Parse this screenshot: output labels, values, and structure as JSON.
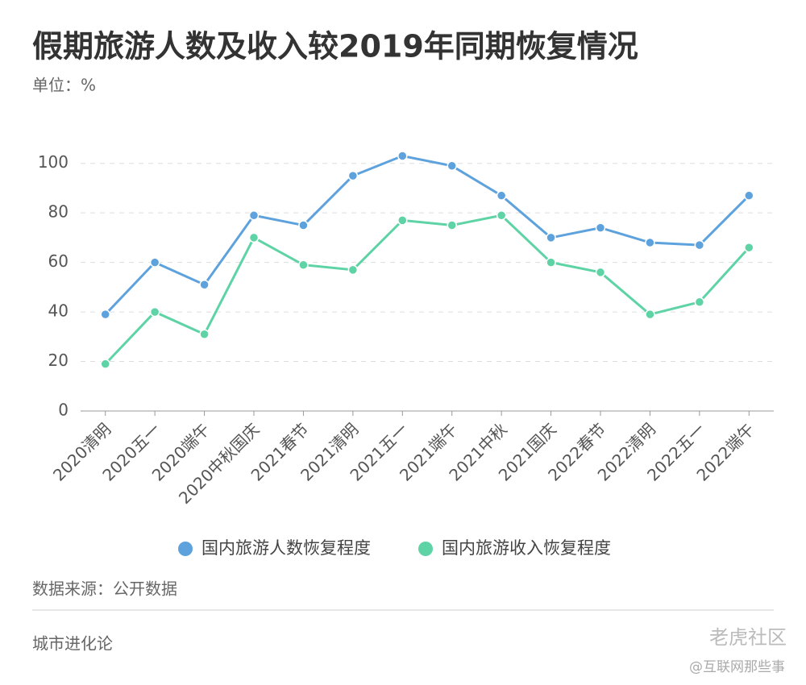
{
  "chart_data": {
    "type": "line",
    "title": "假期旅游人数及收入较2019年同期恢复情况",
    "subtitle": "单位：%",
    "categories": [
      "2020清明",
      "2020五一",
      "2020端午",
      "2020中秋国庆",
      "2021春节",
      "2021清明",
      "2021五一",
      "2021端午",
      "2021中秋",
      "2021国庆",
      "2022春节",
      "2022清明",
      "2022五一",
      "2022端午"
    ],
    "series": [
      {
        "name": "国内旅游人数恢复程度",
        "color": "#5da2dd",
        "values": [
          39,
          60,
          51,
          79,
          75,
          95,
          103,
          99,
          87,
          70,
          74,
          68,
          67,
          87
        ]
      },
      {
        "name": "国内旅游收入恢复程度",
        "color": "#5ed3a5",
        "values": [
          19,
          40,
          31,
          70,
          59,
          57,
          77,
          75,
          79,
          60,
          56,
          39,
          44,
          66
        ]
      }
    ],
    "ylim": [
      0,
      110
    ],
    "yticks": [
      0,
      20,
      40,
      60,
      80,
      100
    ],
    "grid": true,
    "source": "数据来源：公开数据",
    "footer": "城市进化论",
    "watermark": [
      "老虎社区",
      "@互联网那些事"
    ]
  }
}
